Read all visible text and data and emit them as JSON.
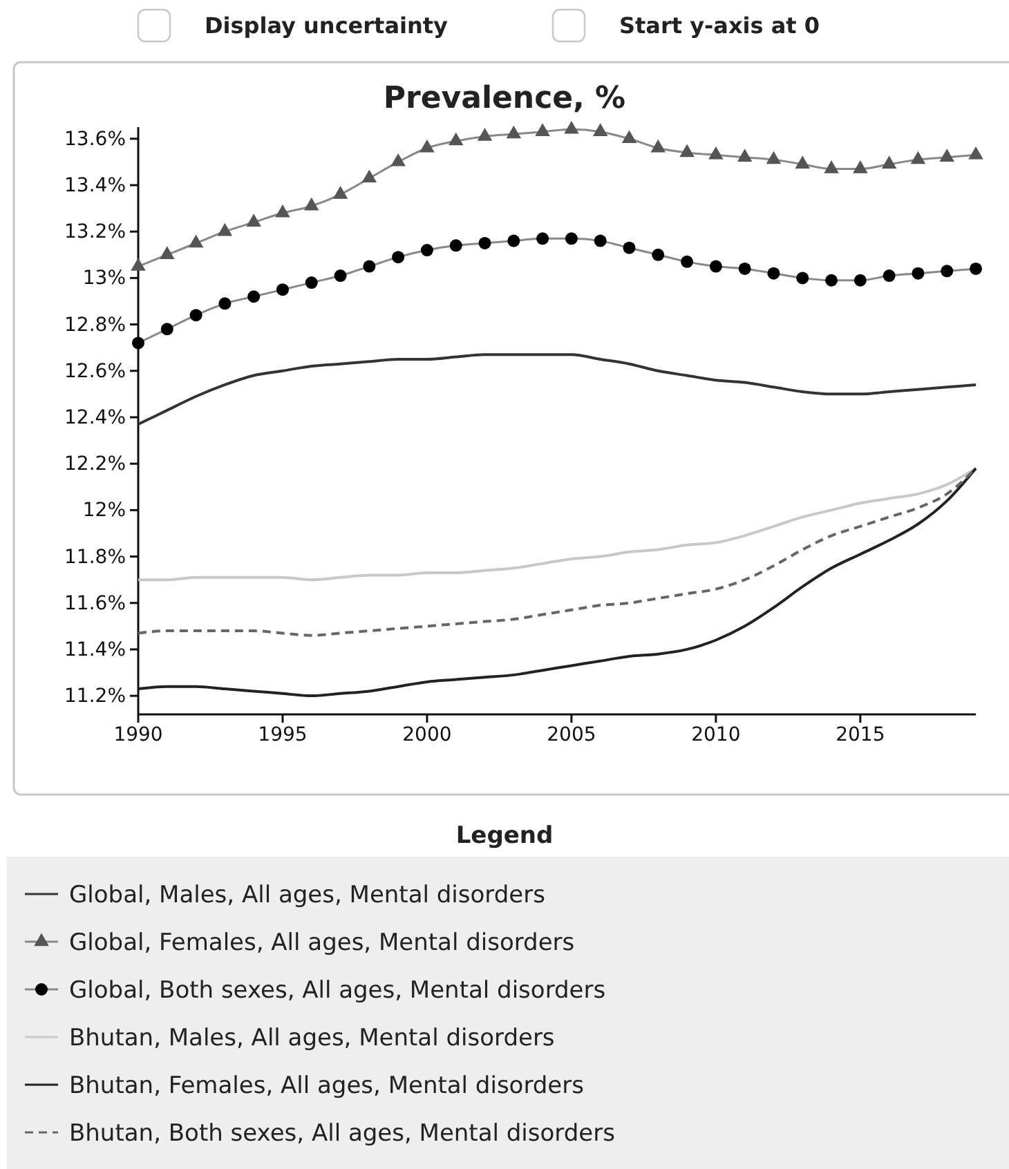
{
  "chart_data": {
    "type": "line",
    "title": "Prevalence, %",
    "legend_title": "Legend",
    "legend": "bottom",
    "grid": false,
    "annotations": [
      "Display uncertainty",
      "Start y-axis at 0"
    ],
    "x": [
      1990,
      1991,
      1992,
      1993,
      1994,
      1995,
      1996,
      1997,
      1998,
      1999,
      2000,
      2001,
      2002,
      2003,
      2004,
      2005,
      2006,
      2007,
      2008,
      2009,
      2010,
      2011,
      2012,
      2013,
      2014,
      2015,
      2016,
      2017,
      2018,
      2019
    ],
    "xlim": [
      1990,
      2019
    ],
    "xticks": [
      1990,
      1995,
      2000,
      2005,
      2010,
      2015
    ],
    "ylim": [
      11.12,
      13.65
    ],
    "yticks": [
      {
        "value": 11.2,
        "label": "11.2%"
      },
      {
        "value": 11.4,
        "label": "11.4%"
      },
      {
        "value": 11.6,
        "label": "11.6%"
      },
      {
        "value": 11.8,
        "label": "11.8%"
      },
      {
        "value": 12,
        "label": "12%"
      },
      {
        "value": 12.2,
        "label": "12.2%"
      },
      {
        "value": 12.4,
        "label": "12.4%"
      },
      {
        "value": 12.6,
        "label": "12.6%"
      },
      {
        "value": 12.8,
        "label": "12.8%"
      },
      {
        "value": 13,
        "label": "13%"
      },
      {
        "value": 13.2,
        "label": "13.2%"
      },
      {
        "value": 13.4,
        "label": "13.4%"
      },
      {
        "value": 13.6,
        "label": "13.6%"
      }
    ],
    "series": [
      {
        "name": "Global, Males, All ages, Mental disorders",
        "color": "#333333",
        "marker": "none",
        "line_style": "solid",
        "values": [
          12.37,
          12.43,
          12.49,
          12.54,
          12.58,
          12.6,
          12.62,
          12.63,
          12.64,
          12.65,
          12.65,
          12.66,
          12.67,
          12.67,
          12.67,
          12.67,
          12.65,
          12.63,
          12.6,
          12.58,
          12.56,
          12.55,
          12.53,
          12.51,
          12.5,
          12.5,
          12.51,
          12.52,
          12.53,
          12.54
        ]
      },
      {
        "name": "Global, Females, All ages, Mental disorders",
        "color": "#555555",
        "marker": "triangle",
        "line_style": "solid",
        "values": [
          13.05,
          13.1,
          13.15,
          13.2,
          13.24,
          13.28,
          13.31,
          13.36,
          13.43,
          13.5,
          13.56,
          13.59,
          13.61,
          13.62,
          13.63,
          13.64,
          13.63,
          13.6,
          13.56,
          13.54,
          13.53,
          13.52,
          13.51,
          13.49,
          13.47,
          13.47,
          13.49,
          13.51,
          13.52,
          13.53
        ]
      },
      {
        "name": "Global, Both sexes, All ages, Mental disorders",
        "color": "#000000",
        "marker": "circle",
        "line_style": "solid",
        "values": [
          12.72,
          12.78,
          12.84,
          12.89,
          12.92,
          12.95,
          12.98,
          13.01,
          13.05,
          13.09,
          13.12,
          13.14,
          13.15,
          13.16,
          13.17,
          13.17,
          13.16,
          13.13,
          13.1,
          13.07,
          13.05,
          13.04,
          13.02,
          13,
          12.99,
          12.99,
          13.01,
          13.02,
          13.03,
          13.04
        ]
      },
      {
        "name": "Bhutan, Males, All ages, Mental disorders",
        "color": "#c8c8c8",
        "marker": "none",
        "line_style": "solid",
        "values": [
          11.7,
          11.7,
          11.71,
          11.71,
          11.71,
          11.71,
          11.7,
          11.71,
          11.72,
          11.72,
          11.73,
          11.73,
          11.74,
          11.75,
          11.77,
          11.79,
          11.8,
          11.82,
          11.83,
          11.85,
          11.86,
          11.89,
          11.93,
          11.97,
          12,
          12.03,
          12.05,
          12.07,
          12.11,
          12.18
        ]
      },
      {
        "name": "Bhutan, Females, All ages, Mental disorders",
        "color": "#222222",
        "marker": "none",
        "line_style": "solid",
        "values": [
          11.23,
          11.24,
          11.24,
          11.23,
          11.22,
          11.21,
          11.2,
          11.21,
          11.22,
          11.24,
          11.26,
          11.27,
          11.28,
          11.29,
          11.31,
          11.33,
          11.35,
          11.37,
          11.38,
          11.4,
          11.44,
          11.5,
          11.58,
          11.67,
          11.75,
          11.81,
          11.87,
          11.94,
          12.04,
          12.18
        ]
      },
      {
        "name": "Bhutan, Both sexes, All ages, Mental disorders",
        "color": "#666666",
        "marker": "none",
        "line_style": "dashed",
        "values": [
          11.47,
          11.48,
          11.48,
          11.48,
          11.48,
          11.47,
          11.46,
          11.47,
          11.48,
          11.49,
          11.5,
          11.51,
          11.52,
          11.53,
          11.55,
          11.57,
          11.59,
          11.6,
          11.62,
          11.64,
          11.66,
          11.7,
          11.76,
          11.83,
          11.89,
          11.93,
          11.97,
          12.01,
          12.07,
          12.18
        ]
      }
    ]
  }
}
